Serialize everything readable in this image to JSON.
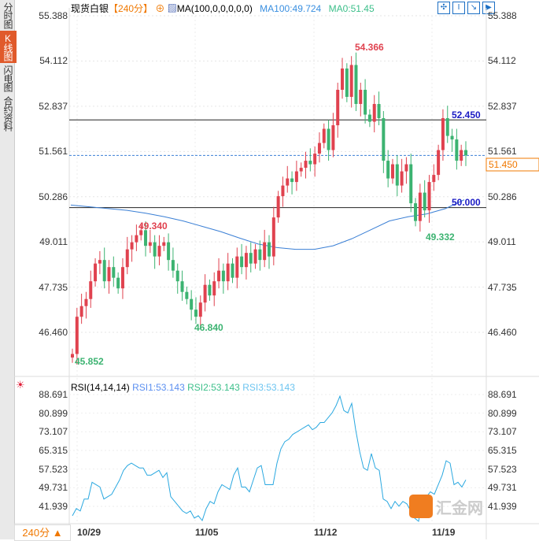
{
  "sidebar": {
    "items": [
      {
        "label": "分时图"
      },
      {
        "label": "K线图",
        "active": true
      },
      {
        "label": "闪电图"
      },
      {
        "label": "合约资料"
      }
    ]
  },
  "header": {
    "title": "现货白银",
    "period": "【240分】",
    "ma_label": "MA(100,0,0,0,0,0)",
    "ma100": "MA100:49.724",
    "ma0": "MA0:51.45"
  },
  "price_axis": [
    "55.388",
    "54.112",
    "52.837",
    "51.561",
    "50.286",
    "49.011",
    "47.735",
    "46.460"
  ],
  "annotations": {
    "high": "54.366",
    "low1": "46.840",
    "start": "45.852",
    "peak1": "49.340",
    "low2": "49.332",
    "line_upper": "52.450",
    "line_lower": "50.000",
    "current": "51.450"
  },
  "rsi": {
    "label": "RSI(14,14,14)",
    "rsi1": "RSI1:53.143",
    "rsi2": "RSI2:53.143",
    "rsi3": "RSI3:53.143",
    "axis": [
      "88.691",
      "80.899",
      "73.107",
      "65.315",
      "57.523",
      "49.731",
      "41.939"
    ]
  },
  "dates": [
    "10/29",
    "11/05",
    "11/12",
    "11/19"
  ],
  "period_button": "240分 ▲",
  "watermark": "汇金网",
  "colors": {
    "up": "#e0424f",
    "down": "#3cb371",
    "ma": "#3a7fd5",
    "rsi": "#2aa8e0"
  },
  "closes": [
    45.85,
    46.9,
    47.2,
    47.4,
    47.9,
    48.4,
    48.5,
    47.9,
    48.3,
    48.0,
    47.7,
    48.3,
    48.8,
    49.0,
    49.2,
    49.34,
    48.9,
    49.0,
    48.6,
    48.9,
    49.0,
    48.5,
    48.2,
    47.9,
    47.6,
    47.4,
    47.1,
    46.9,
    47.3,
    47.8,
    47.5,
    47.9,
    48.2,
    47.9,
    48.4,
    48.0,
    48.6,
    48.3,
    48.7,
    48.4,
    48.8,
    48.5,
    49.0,
    48.6,
    49.7,
    50.3,
    50.6,
    50.8,
    50.7,
    51.0,
    51.1,
    51.3,
    51.2,
    51.5,
    51.8,
    52.2,
    51.6,
    52.3,
    53.3,
    53.9,
    53.1,
    54.0,
    52.9,
    53.3,
    52.6,
    52.4,
    52.9,
    52.5,
    51.3,
    50.8,
    51.2,
    50.6,
    51.0,
    51.2,
    50.1,
    49.6,
    50.4,
    49.9,
    50.7,
    50.9,
    51.6,
    52.5,
    52.0,
    51.9,
    51.3,
    51.6,
    51.45
  ],
  "ma100_series": [
    50.05,
    50.0,
    49.95,
    49.9,
    49.82,
    49.72,
    49.6,
    49.45,
    49.3,
    49.12,
    48.95,
    48.85,
    48.8,
    48.8,
    48.9,
    49.1,
    49.35,
    49.6,
    49.72,
    49.8,
    49.95,
    50.2
  ],
  "rsi_series": [
    38,
    41,
    40,
    45,
    45,
    52,
    51,
    50,
    45,
    46,
    47,
    50,
    53,
    57,
    59,
    60,
    59,
    58,
    58,
    55,
    55,
    56,
    57,
    54,
    56,
    46,
    44,
    42,
    40,
    39,
    40,
    37,
    38,
    36,
    41,
    44,
    43,
    48,
    51,
    50,
    49,
    55,
    58,
    50,
    50,
    48,
    53,
    58,
    59,
    51,
    51,
    51,
    60,
    66,
    69,
    70,
    72,
    73,
    74,
    75,
    76,
    74,
    75,
    77,
    77,
    79,
    81,
    84,
    88,
    82,
    81,
    85,
    74,
    65,
    58,
    57,
    64,
    58,
    57,
    45,
    44,
    41,
    44,
    42,
    44,
    43,
    40,
    37,
    35,
    46,
    46,
    48,
    47,
    51,
    55,
    61,
    60,
    51,
    52,
    50,
    53
  ]
}
